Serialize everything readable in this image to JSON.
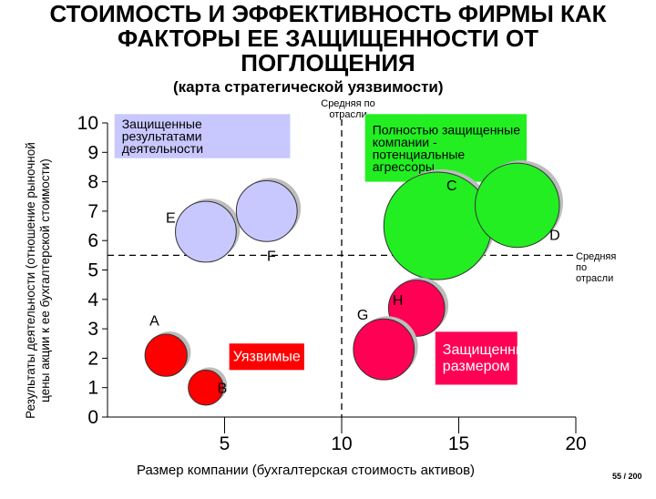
{
  "title_lines": [
    "СТОИМОСТЬ И ЭФФЕКТИВНОСТЬ ФИРМЫ КАК",
    "ФАКТОРЫ ЕЕ ЗАЩИЩЕННОСТИ ОТ",
    "ПОГЛОЩЕНИЯ"
  ],
  "subtitle": "(карта стратегической уязвимости)",
  "page_number": "55 / 200",
  "chart_data": {
    "type": "scatter",
    "xlabel": "Размер компании (бухгалтерская стоимость активов)",
    "ylabel_lines": [
      "Результаты деятельности (отношение рыночной",
      "цены акции к ее бухгалтерской стоимости)"
    ],
    "xlim": [
      0,
      20
    ],
    "ylim": [
      0,
      10
    ],
    "x_ticks": [
      5,
      10,
      15,
      20
    ],
    "y_ticks": [
      0,
      1,
      2,
      3,
      4,
      5,
      6,
      7,
      8,
      9,
      10
    ],
    "grid": false,
    "average_x": 10,
    "average_y": 5.5,
    "average_label_x_lines": [
      "Средняя по",
      "отрасли"
    ],
    "average_label_y_lines": [
      "Средняя",
      "по",
      "отрасли"
    ],
    "points": [
      {
        "label": "A",
        "x": 2.5,
        "y": 2.1,
        "size": 0.9,
        "color": "#ff0000",
        "label_dx": -0.5,
        "label_dy": 1.2
      },
      {
        "label": "B",
        "x": 4.2,
        "y": 1.0,
        "size": 0.75,
        "color": "#ff0000",
        "label_dx": 0.7,
        "label_dy": 0.0
      },
      {
        "label": "E",
        "x": 4.2,
        "y": 6.3,
        "size": 1.3,
        "color": "#c8c8ff",
        "label_dx": -1.5,
        "label_dy": 0.5
      },
      {
        "label": "F",
        "x": 6.8,
        "y": 7.0,
        "size": 1.3,
        "color": "#c8c8ff",
        "label_dx": 0.2,
        "label_dy": -1.5
      },
      {
        "label": "C",
        "x": 14.1,
        "y": 6.5,
        "size": 2.3,
        "color": "#22ee22",
        "label_dx": 0.6,
        "label_dy": 1.4
      },
      {
        "label": "D",
        "x": 17.5,
        "y": 7.2,
        "size": 1.8,
        "color": "#22ee22",
        "label_dx": 1.6,
        "label_dy": -1.0
      },
      {
        "label": "H",
        "x": 13.2,
        "y": 3.7,
        "size": 1.2,
        "color": "#ff0055",
        "label_dx": -0.8,
        "label_dy": 0.3
      },
      {
        "label": "G",
        "x": 11.8,
        "y": 2.3,
        "size": 1.3,
        "color": "#ff0055",
        "label_dx": -0.9,
        "label_dy": 1.2
      }
    ],
    "boxes": [
      {
        "lines": [
          "Защищенные",
          "результатами",
          "деятельности"
        ],
        "bg": "#c8c8ff",
        "fg": "#000000",
        "x0": 0.3,
        "y0": 8.8,
        "x1": 7.8,
        "y1": 10.3
      },
      {
        "lines": [
          "Полностью защищенные",
          "компании -",
          "потенциальные",
          "агрессоры"
        ],
        "bg": "#22ee22",
        "fg": "#000000",
        "x0": 11.0,
        "y0": 8.0,
        "x1": 17.9,
        "y1": 10.3
      },
      {
        "lines": [
          "Уязвимые"
        ],
        "bg": "#ff0000",
        "fg": "#ffffff",
        "x0": 5.2,
        "y0": 1.6,
        "x1": 8.4,
        "y1": 2.5
      },
      {
        "lines": [
          "Защищенные",
          "размером"
        ],
        "bg": "#ff0055",
        "fg": "#ffffff",
        "x0": 14.0,
        "y0": 1.1,
        "x1": 17.5,
        "y1": 2.9
      }
    ]
  }
}
